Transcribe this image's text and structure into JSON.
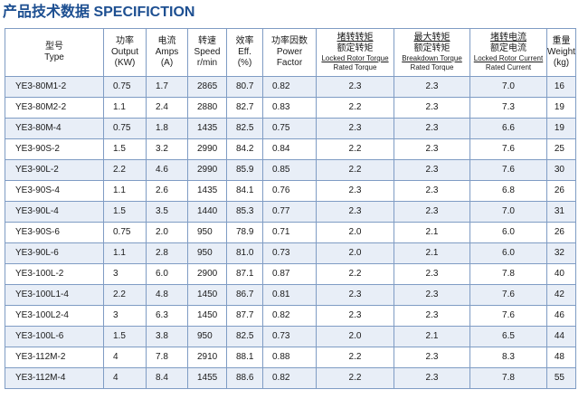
{
  "title": "产品技术数据 SPECIFICTION",
  "headers": {
    "type": [
      "型号",
      "Type"
    ],
    "output": [
      "功率",
      "Output",
      "(KW)"
    ],
    "amps": [
      "电流",
      "Amps",
      "(A)"
    ],
    "speed": [
      "转速",
      "Speed",
      "r/min"
    ],
    "eff": [
      "效率",
      "Eff.",
      "(%)"
    ],
    "pf": [
      "功率因数",
      "Power",
      "Factor"
    ],
    "lrt": [
      "堵转转矩",
      "额定转矩",
      "Locked Rotor Torque",
      "Rated Torque"
    ],
    "bdt": [
      "最大转矩",
      "额定转矩",
      "Breakdown Torque",
      "Rated Torque"
    ],
    "lrc": [
      "堵转电流",
      "额定电流",
      "Locked Rotor Current",
      "Rated Current"
    ],
    "weight": [
      "重量",
      "Weight",
      "(kg)"
    ]
  },
  "rows": [
    {
      "type": "YE3-80M1-2",
      "output": "0.75",
      "amps": "1.7",
      "speed": "2865",
      "eff": "80.7",
      "pf": "0.82",
      "lrt": "2.3",
      "bdt": "2.3",
      "lrc": "7.0",
      "weight": "16"
    },
    {
      "type": "YE3-80M2-2",
      "output": "1.1",
      "amps": "2.4",
      "speed": "2880",
      "eff": "82.7",
      "pf": "0.83",
      "lrt": "2.2",
      "bdt": "2.3",
      "lrc": "7.3",
      "weight": "19"
    },
    {
      "type": "YE3-80M-4",
      "output": "0.75",
      "amps": "1.8",
      "speed": "1435",
      "eff": "82.5",
      "pf": "0.75",
      "lrt": "2.3",
      "bdt": "2.3",
      "lrc": "6.6",
      "weight": "19"
    },
    {
      "type": "YE3-90S-2",
      "output": "1.5",
      "amps": "3.2",
      "speed": "2990",
      "eff": "84.2",
      "pf": "0.84",
      "lrt": "2.2",
      "bdt": "2.3",
      "lrc": "7.6",
      "weight": "25"
    },
    {
      "type": "YE3-90L-2",
      "output": "2.2",
      "amps": "4.6",
      "speed": "2990",
      "eff": "85.9",
      "pf": "0.85",
      "lrt": "2.2",
      "bdt": "2.3",
      "lrc": "7.6",
      "weight": "30"
    },
    {
      "type": "YE3-90S-4",
      "output": "1.1",
      "amps": "2.6",
      "speed": "1435",
      "eff": "84.1",
      "pf": "0.76",
      "lrt": "2.3",
      "bdt": "2.3",
      "lrc": "6.8",
      "weight": "26"
    },
    {
      "type": "YE3-90L-4",
      "output": "1.5",
      "amps": "3.5",
      "speed": "1440",
      "eff": "85.3",
      "pf": "0.77",
      "lrt": "2.3",
      "bdt": "2.3",
      "lrc": "7.0",
      "weight": "31"
    },
    {
      "type": "YE3-90S-6",
      "output": "0.75",
      "amps": "2.0",
      "speed": "950",
      "eff": "78.9",
      "pf": "0.71",
      "lrt": "2.0",
      "bdt": "2.1",
      "lrc": "6.0",
      "weight": "26"
    },
    {
      "type": "YE3-90L-6",
      "output": "1.1",
      "amps": "2.8",
      "speed": "950",
      "eff": "81.0",
      "pf": "0.73",
      "lrt": "2.0",
      "bdt": "2.1",
      "lrc": "6.0",
      "weight": "32"
    },
    {
      "type": "YE3-100L-2",
      "output": "3",
      "amps": "6.0",
      "speed": "2900",
      "eff": "87.1",
      "pf": "0.87",
      "lrt": "2.2",
      "bdt": "2.3",
      "lrc": "7.8",
      "weight": "40"
    },
    {
      "type": "YE3-100L1-4",
      "output": "2.2",
      "amps": "4.8",
      "speed": "1450",
      "eff": "86.7",
      "pf": "0.81",
      "lrt": "2.3",
      "bdt": "2.3",
      "lrc": "7.6",
      "weight": "42"
    },
    {
      "type": "YE3-100L2-4",
      "output": "3",
      "amps": "6.3",
      "speed": "1450",
      "eff": "87.7",
      "pf": "0.82",
      "lrt": "2.3",
      "bdt": "2.3",
      "lrc": "7.6",
      "weight": "46"
    },
    {
      "type": "YE3-100L-6",
      "output": "1.5",
      "amps": "3.8",
      "speed": "950",
      "eff": "82.5",
      "pf": "0.73",
      "lrt": "2.0",
      "bdt": "2.1",
      "lrc": "6.5",
      "weight": "44"
    },
    {
      "type": "YE3-112M-2",
      "output": "4",
      "amps": "7.8",
      "speed": "2910",
      "eff": "88.1",
      "pf": "0.88",
      "lrt": "2.2",
      "bdt": "2.3",
      "lrc": "8.3",
      "weight": "48"
    },
    {
      "type": "YE3-112M-4",
      "output": "4",
      "amps": "8.4",
      "speed": "1455",
      "eff": "88.6",
      "pf": "0.82",
      "lrt": "2.2",
      "bdt": "2.3",
      "lrc": "7.8",
      "weight": "55"
    }
  ]
}
